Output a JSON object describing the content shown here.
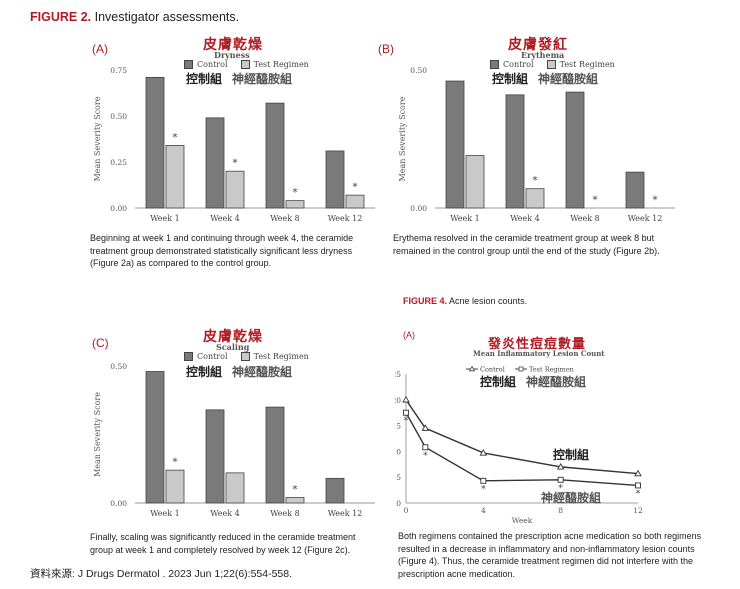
{
  "figure2": {
    "label": "FIGURE 2.",
    "text": "Investigator assessments."
  },
  "figure4": {
    "label": "FIGURE 4.",
    "text": "Acne lesion counts."
  },
  "panels": {
    "a": {
      "letter": "(A)",
      "cn_title": "皮膚乾燥",
      "subtitle": "Dryness",
      "caption": "Beginning at week 1 and continuing through week 4, the ceramide treatment group demonstrated statistically significant less dryness (Figure 2a) as compared to the control group."
    },
    "b": {
      "letter": "(B)",
      "cn_title": "皮膚發紅",
      "subtitle": "Erythema",
      "caption": "Erythema resolved in the ceramide treatment group at week 8 but remained in the control group until the end of the study (Figure 2b)."
    },
    "c": {
      "letter": "(C)",
      "cn_title": "皮膚乾燥",
      "subtitle": "Scaling",
      "caption": "Finally, scaling was significantly reduced in the ceramide treatment group at week 1 and completely resolved by week 12 (Figure 2c)."
    },
    "d": {
      "letter": "(A)",
      "cn_title": "發炎性痘痘數量",
      "subtitle": "Mean Inflammatory Lesion Count",
      "caption": "Both regimens contained the prescription acne medication so both regimens resulted in a decrease in inflammatory and non-inflammatory lesion counts (Figure 4). Thus, the ceramide treatment regimen did not interfere with the prescription acne medication."
    }
  },
  "legend": {
    "control": "Control",
    "test": "Test Regimen",
    "control_cn": "控制組",
    "test_cn": "神經醯胺組"
  },
  "source": "資料來源: J Drugs Dermatol . 2023 Jun 1;22(6):554-558.",
  "colors": {
    "accent": "#b01c24",
    "control_bar": "#7a7a7a",
    "test_bar": "#c9c9c9"
  },
  "chart_data": [
    {
      "type": "bar",
      "title": "Dryness",
      "ylabel": "Mean Severity Score",
      "categories": [
        "Week 1",
        "Week 4",
        "Week 8",
        "Week 12"
      ],
      "ylim": [
        0,
        0.75
      ],
      "yticks": [
        "0.00",
        "0.25",
        "0.50",
        "0.75"
      ],
      "ytick_values": [
        0,
        0.25,
        0.5,
        0.75
      ],
      "series": [
        {
          "name": "Control",
          "values": [
            0.71,
            0.49,
            0.57,
            0.31
          ]
        },
        {
          "name": "Test Regimen",
          "values": [
            0.34,
            0.2,
            0.04,
            0.07
          ]
        }
      ],
      "significance": [
        true,
        true,
        true,
        true
      ]
    },
    {
      "type": "bar",
      "title": "Erythema",
      "ylabel": "Mean Severity Score",
      "categories": [
        "Week 1",
        "Week 4",
        "Week 8",
        "Week 12"
      ],
      "ylim": [
        0,
        0.5
      ],
      "yticks": [
        "0.00",
        "0.50"
      ],
      "ytick_values": [
        0,
        0.5
      ],
      "series": [
        {
          "name": "Control",
          "values": [
            0.46,
            0.41,
            0.42,
            0.13
          ]
        },
        {
          "name": "Test Regimen",
          "values": [
            0.19,
            0.07,
            0.0,
            0.0
          ]
        }
      ],
      "significance": [
        false,
        true,
        true,
        true
      ]
    },
    {
      "type": "bar",
      "title": "Scaling",
      "ylabel": "Mean Severity Score",
      "categories": [
        "Week 1",
        "Week 4",
        "Week 8",
        "Week 12"
      ],
      "ylim": [
        0,
        0.5
      ],
      "yticks": [
        "0.00",
        "0.50"
      ],
      "ytick_values": [
        0,
        0.5
      ],
      "series": [
        {
          "name": "Control",
          "values": [
            0.48,
            0.34,
            0.35,
            0.09
          ]
        },
        {
          "name": "Test Regimen",
          "values": [
            0.12,
            0.11,
            0.02,
            0.0
          ]
        }
      ],
      "significance": [
        true,
        false,
        true,
        false
      ]
    },
    {
      "type": "line",
      "title": "Mean Inflammatory Lesion Count",
      "xlabel": "Week",
      "ylabel": "Lesion Count",
      "x": [
        0,
        1,
        4,
        8,
        12
      ],
      "xticks": [
        0,
        4,
        8,
        12
      ],
      "xlim": [
        0,
        12
      ],
      "ylim": [
        0,
        25
      ],
      "yticks": [
        0,
        5,
        10,
        15,
        20,
        25
      ],
      "series": [
        {
          "name": "Control",
          "values": [
            20,
            14.5,
            9.7,
            7.0,
            5.7
          ]
        },
        {
          "name": "Test Regimen",
          "values": [
            17.5,
            10.8,
            4.3,
            4.5,
            3.4
          ]
        }
      ],
      "significance_x": [
        0,
        1,
        4,
        8,
        12
      ]
    }
  ]
}
